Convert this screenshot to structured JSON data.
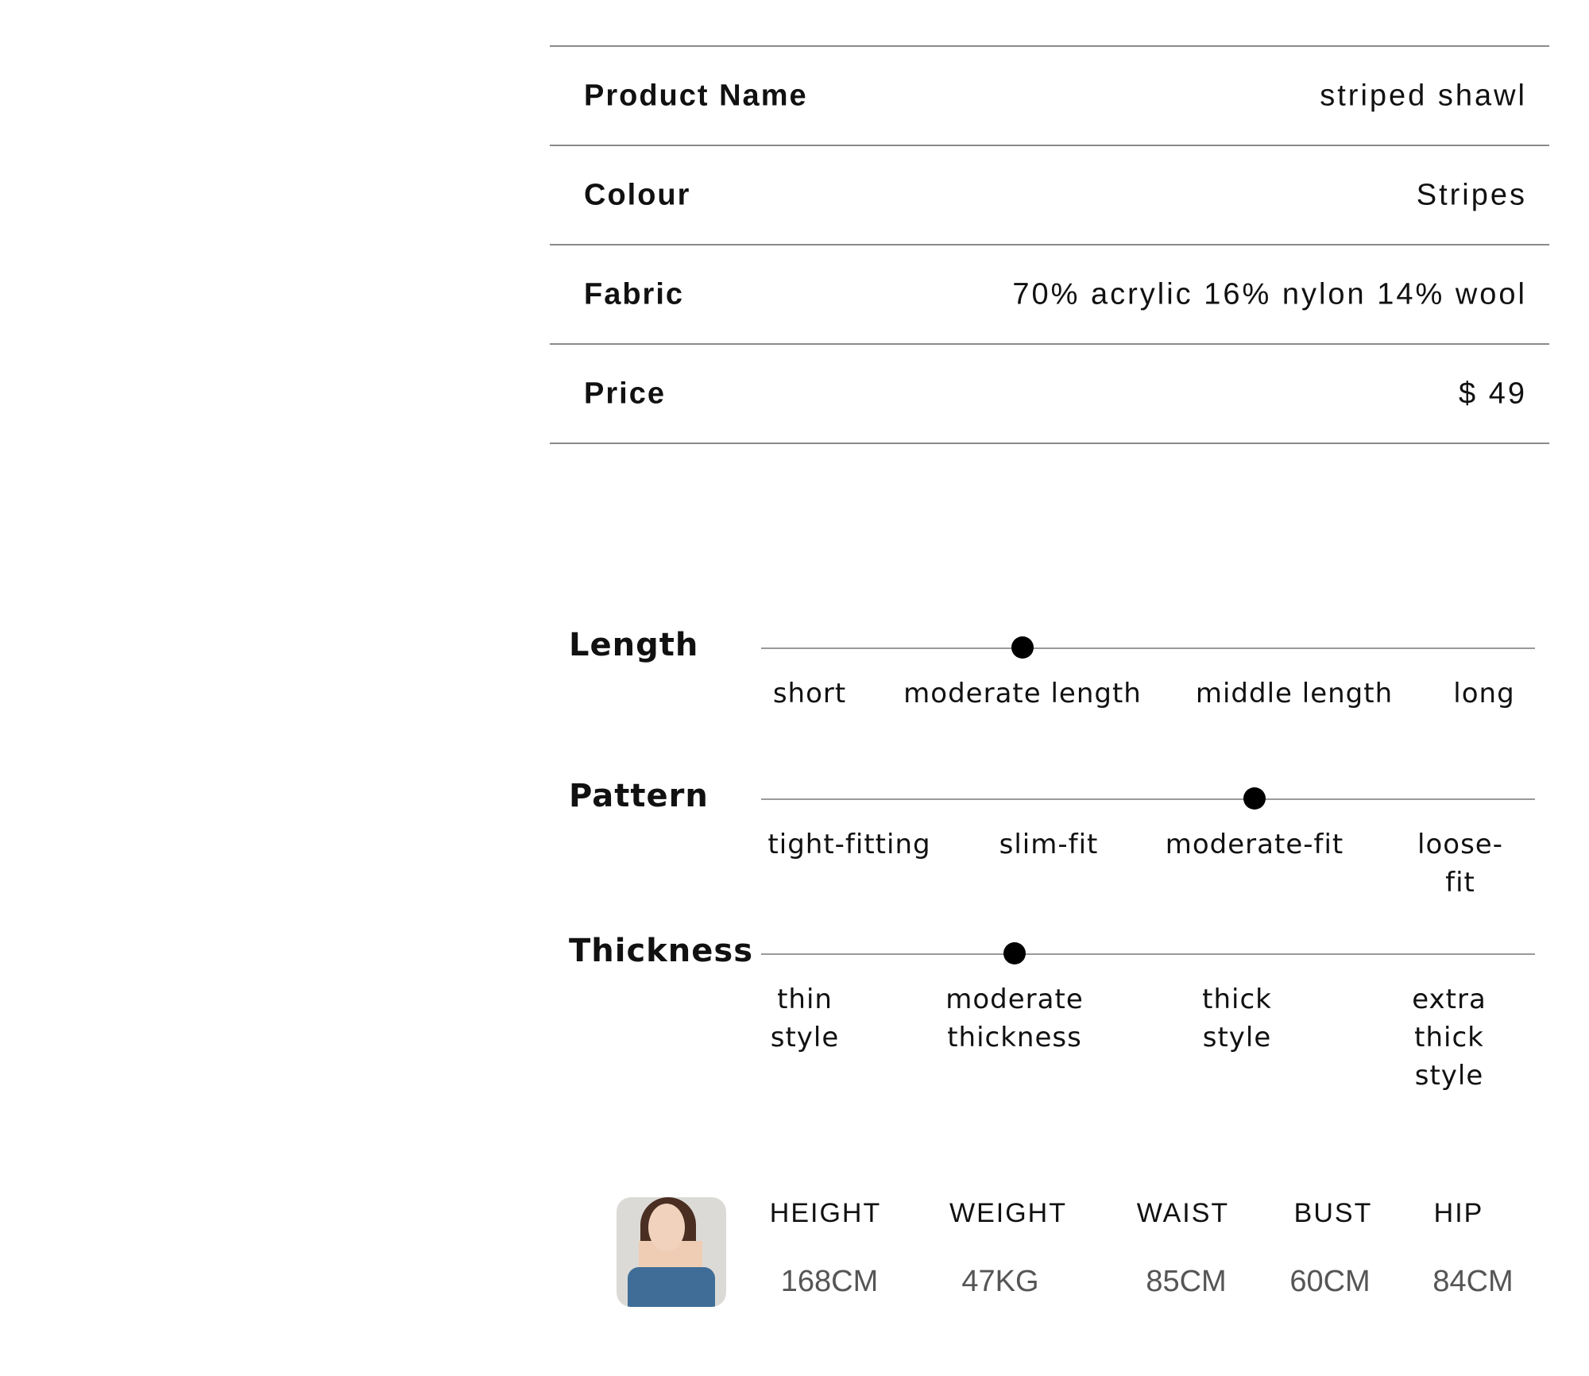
{
  "specs": [
    {
      "label": "Product Name",
      "value": "striped shawl"
    },
    {
      "label": "Colour",
      "value": "Stripes"
    },
    {
      "label": "Fabric",
      "value": "70% acrylic 16% nylon 14% wool"
    },
    {
      "label": "Price",
      "value": "$ 49"
    }
  ],
  "sliders": [
    {
      "label": "Length",
      "options": [
        "short",
        "moderate length",
        "middle length",
        "long"
      ],
      "selected_index": 1
    },
    {
      "label": "Pattern",
      "options": [
        "tight-fitting",
        "slim-fit",
        "moderate-fit",
        "loose-fit"
      ],
      "selected_index": 2
    },
    {
      "label": "Thickness",
      "options": [
        "thin\nstyle",
        "moderate\nthickness",
        "thick\nstyle",
        "extra\nthick style"
      ],
      "selected_index": 1
    }
  ],
  "model": {
    "headers": [
      "HEIGHT",
      "WEIGHT",
      "WAIST",
      "BUST",
      "HIP"
    ],
    "values": [
      "168CM",
      "47KG",
      "85CM",
      "60CM",
      "84CM"
    ]
  }
}
